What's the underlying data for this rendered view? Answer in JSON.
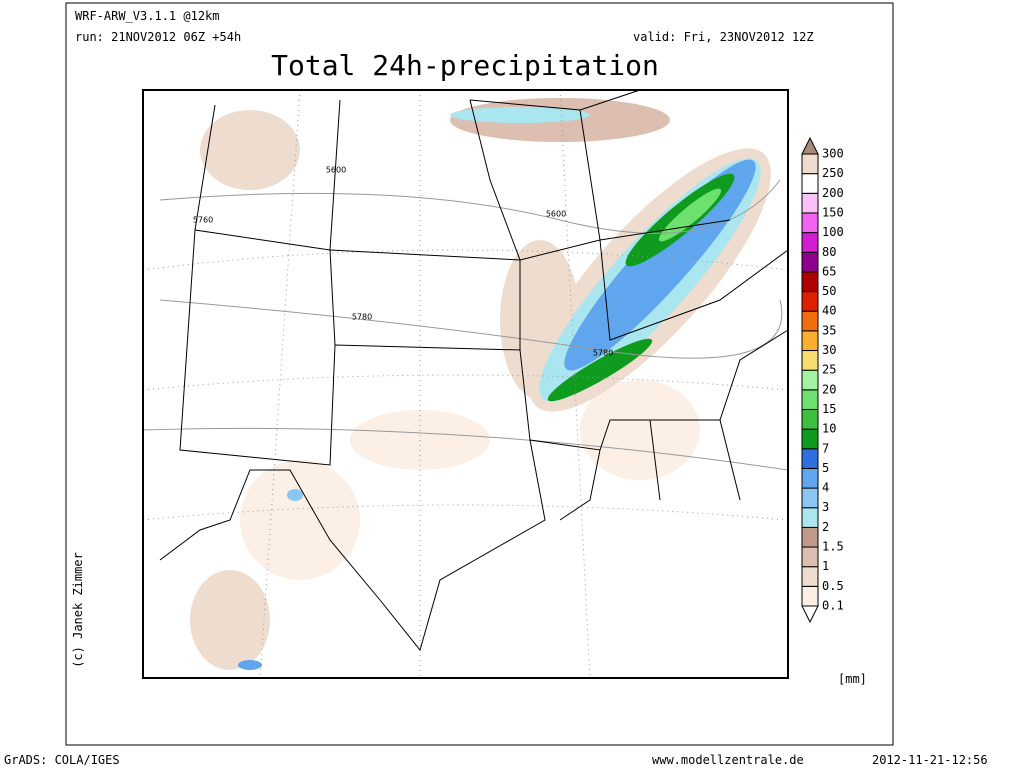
{
  "header": {
    "model": "WRF-ARW_V3.1.1 @12km",
    "run": "run: 21NOV2012 06Z +54h",
    "valid": "valid: Fri, 23NOV2012 12Z",
    "title": "Total 24h-precipitation"
  },
  "map": {
    "contour_labels": [
      "5600",
      "5600",
      "5760",
      "5780",
      "5780"
    ]
  },
  "colorbar": {
    "unit": "[mm]",
    "levels": [
      0.1,
      0.5,
      1,
      1.5,
      2,
      3,
      4,
      5,
      7,
      10,
      15,
      20,
      25,
      30,
      35,
      40,
      50,
      65,
      80,
      100,
      150,
      200,
      250,
      300
    ],
    "colors": [
      "#ffffff",
      "#fcefe6",
      "#eedccf",
      "#dcbfb0",
      "#bf9a8b",
      "#a9e6f0",
      "#8ac6f2",
      "#5fa6ee",
      "#2f6fdf",
      "#0e9b1e",
      "#3fbf3f",
      "#6ee06e",
      "#a2f2a2",
      "#f6de6e",
      "#f8b02e",
      "#f06e0e",
      "#df2000",
      "#ae0000",
      "#8e008e",
      "#d21ed2",
      "#f262f2",
      "#f8c2f8",
      "#ffffff",
      "#eedccf",
      "#a88878"
    ]
  },
  "credit": "(c) Janek Zimmer",
  "footer": {
    "left": "GrADS: COLA/IGES",
    "center": "www.modellzentrale.de",
    "right": "2012-11-21-12:56"
  }
}
